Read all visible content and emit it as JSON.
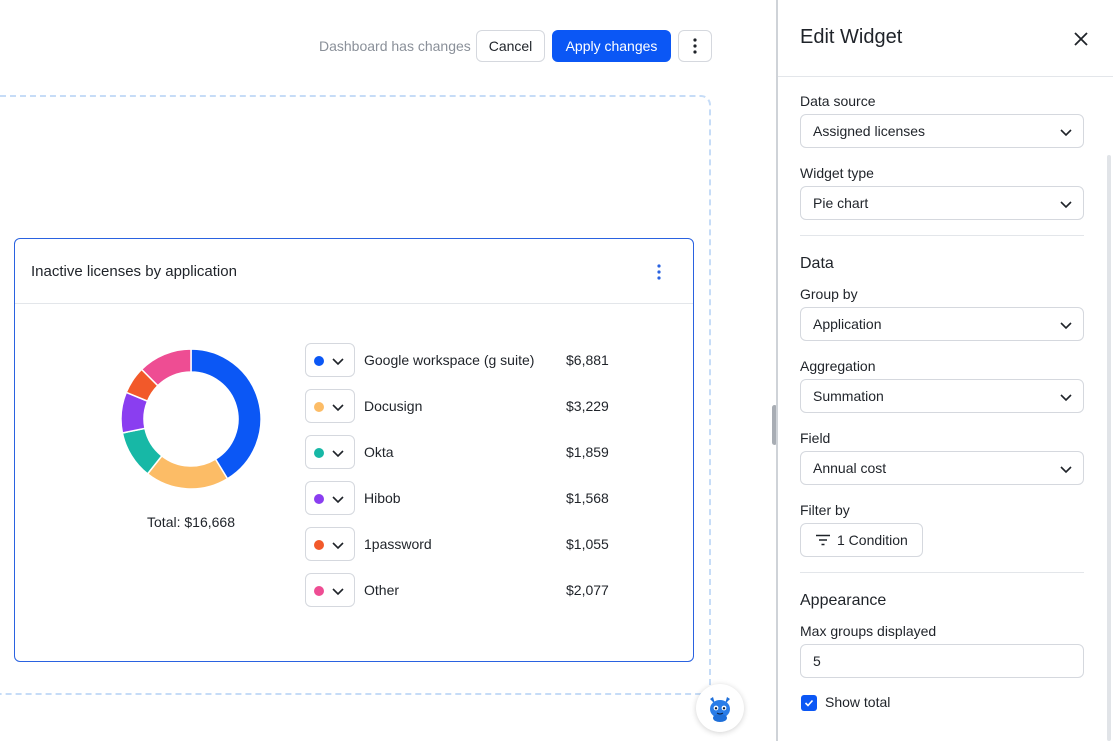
{
  "toolbar": {
    "status_text": "Dashboard has changes",
    "cancel_label": "Cancel",
    "apply_label": "Apply changes"
  },
  "widget": {
    "title": "Inactive licenses by application",
    "total_text": "Total: $16,668",
    "items": [
      {
        "label": "Google workspace (g suite)",
        "value": "$6,881",
        "color": "#0b57f5"
      },
      {
        "label": "Docusign",
        "value": "$3,229",
        "color": "#fcbc66"
      },
      {
        "label": "Okta",
        "value": "$1,859",
        "color": "#17b8a6"
      },
      {
        "label": "Hibob",
        "value": "$1,568",
        "color": "#8a3ef0"
      },
      {
        "label": "1password",
        "value": "$1,055",
        "color": "#f2592a"
      },
      {
        "label": "Other",
        "value": "$2,077",
        "color": "#ee4d93"
      }
    ]
  },
  "chart_data": {
    "type": "pie",
    "title": "Inactive licenses by application",
    "categories": [
      "Google workspace (g suite)",
      "Docusign",
      "Okta",
      "Hibob",
      "1password",
      "Other"
    ],
    "values": [
      6881,
      3229,
      1859,
      1568,
      1055,
      2077
    ],
    "colors": [
      "#0b57f5",
      "#fcbc66",
      "#17b8a6",
      "#8a3ef0",
      "#f2592a",
      "#ee4d93"
    ],
    "donut": true,
    "total_label": "Total: $16,668"
  },
  "panel": {
    "title": "Edit Widget",
    "data_source": {
      "label": "Data source",
      "value": "Assigned licenses"
    },
    "widget_type": {
      "label": "Widget type",
      "value": "Pie chart"
    },
    "data_section": "Data",
    "group_by": {
      "label": "Group by",
      "value": "Application"
    },
    "aggregation": {
      "label": "Aggregation",
      "value": "Summation"
    },
    "field": {
      "label": "Field",
      "value": "Annual cost"
    },
    "filter_by": {
      "label": "Filter by",
      "button": "1 Condition"
    },
    "appearance_section": "Appearance",
    "max_groups": {
      "label": "Max groups displayed",
      "value": "5"
    },
    "show_total": {
      "label": "Show total",
      "checked": true
    }
  }
}
